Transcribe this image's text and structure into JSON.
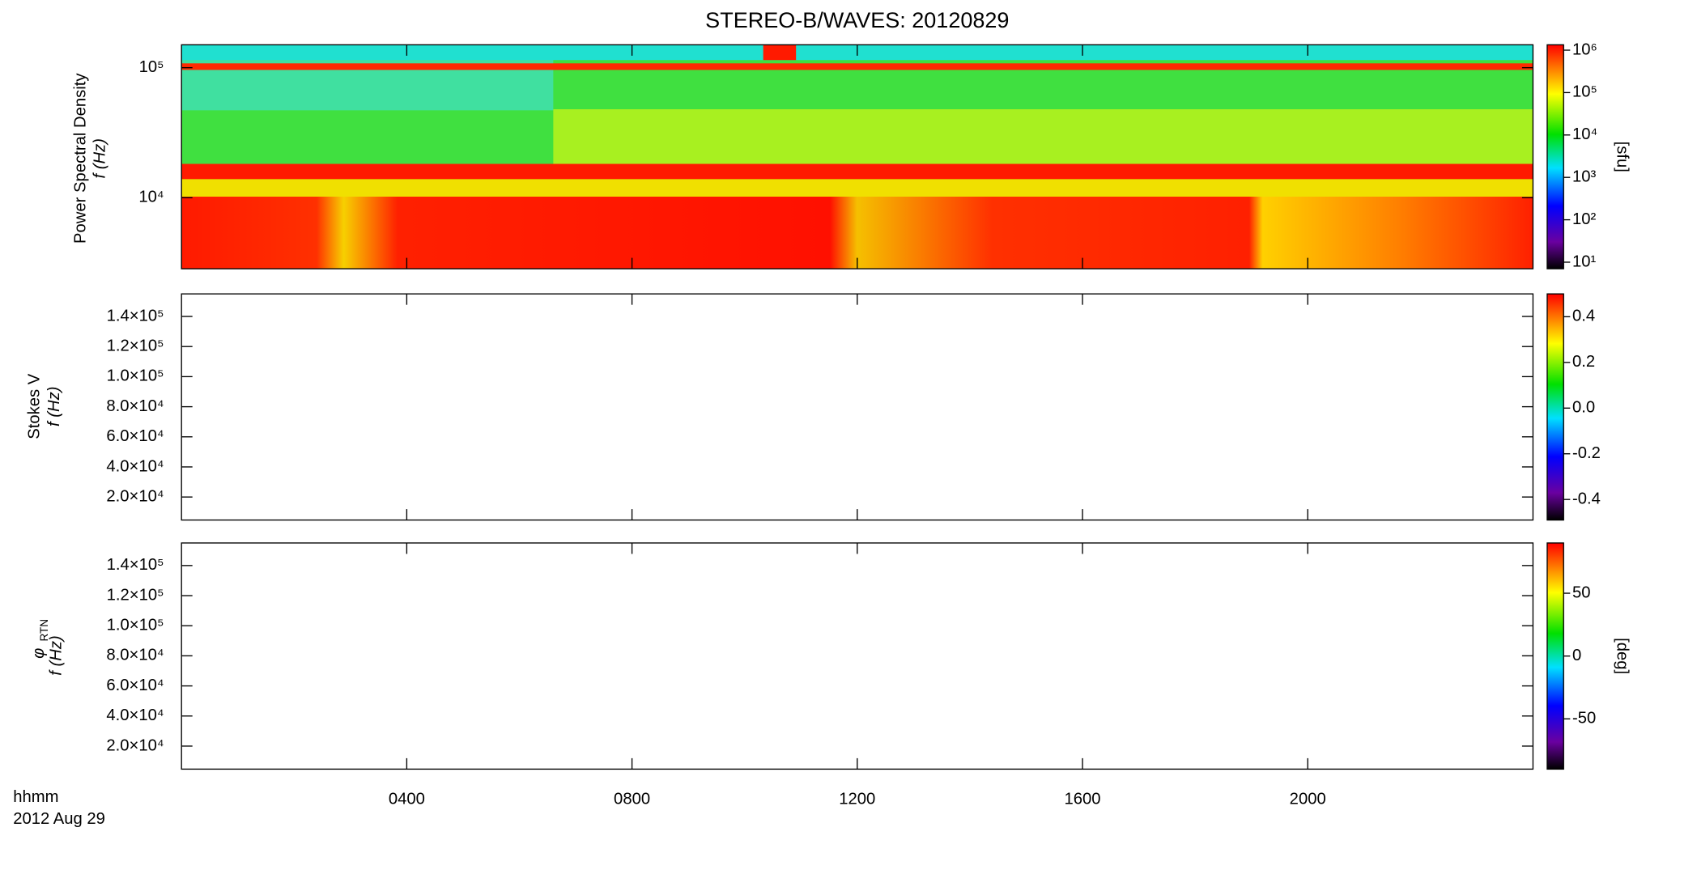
{
  "chart_data": [
    {
      "type": "spectrogram",
      "title": "STEREO-B/WAVES: 20120829",
      "y_label": "Power Spectral Density",
      "y_label2": "f (Hz)",
      "log_y": true,
      "ylim": [
        2840,
        150000
      ],
      "yticks": [
        {
          "value": 10000,
          "label": "10⁴"
        },
        {
          "value": 100000,
          "label": "10⁵"
        }
      ],
      "xlim": [
        0,
        24
      ],
      "xticks": [
        4,
        8,
        12,
        16,
        20
      ],
      "colorbar": {
        "label": "[sfu]",
        "log": true,
        "lim": [
          7,
          1340000
        ],
        "ticks": [
          {
            "value": 10,
            "label": "10¹"
          },
          {
            "value": 100,
            "label": "10²"
          },
          {
            "value": 1000,
            "label": "10³"
          },
          {
            "value": 10000,
            "label": "10⁴"
          },
          {
            "value": 100000,
            "label": "10⁵"
          },
          {
            "value": 1000000,
            "label": "10⁶"
          }
        ]
      }
    },
    {
      "type": "spectrogram",
      "y_label": "Stokes V",
      "y_label2": "f (Hz)",
      "log_y": false,
      "ylim": [
        4700,
        155000
      ],
      "yticks": [
        {
          "value": 20000,
          "label": "2.0×10⁴"
        },
        {
          "value": 40000,
          "label": "4.0×10⁴"
        },
        {
          "value": 60000,
          "label": "6.0×10⁴"
        },
        {
          "value": 80000,
          "label": "8.0×10⁴"
        },
        {
          "value": 100000,
          "label": "1.0×10⁵"
        },
        {
          "value": 120000,
          "label": "1.2×10⁵"
        },
        {
          "value": 140000,
          "label": "1.4×10⁵"
        }
      ],
      "xlim": [
        0,
        24
      ],
      "xticks": [
        4,
        8,
        12,
        16,
        20
      ],
      "colorbar": {
        "log": false,
        "lim": [
          -0.49,
          0.5
        ],
        "ticks": [
          -0.4,
          -0.2,
          {
            "value": 0,
            "label": "0.0"
          },
          0.2,
          0.4
        ]
      }
    },
    {
      "type": "spectrogram",
      "y_label": "φ",
      "y_label_sub": "RTN",
      "y_label2": "f (Hz)",
      "log_y": false,
      "ylim": [
        4700,
        155000
      ],
      "yticks": [
        {
          "value": 20000,
          "label": "2.0×10⁴"
        },
        {
          "value": 40000,
          "label": "4.0×10⁴"
        },
        {
          "value": 60000,
          "label": "6.0×10⁴"
        },
        {
          "value": 80000,
          "label": "8.0×10⁴"
        },
        {
          "value": 100000,
          "label": "1.0×10⁵"
        },
        {
          "value": 120000,
          "label": "1.2×10⁵"
        },
        {
          "value": 140000,
          "label": "1.4×10⁵"
        }
      ],
      "xlim": [
        0,
        24
      ],
      "xticks": [
        {
          "value": 4,
          "label": "0400"
        },
        {
          "value": 8,
          "label": "0800"
        },
        {
          "value": 12,
          "label": "1200"
        },
        {
          "value": 16,
          "label": "1600"
        },
        {
          "value": 20,
          "label": "2000"
        }
      ],
      "xlabel": "hhmm",
      "date": "2012 Aug 29",
      "colorbar": {
        "label": "[deg]",
        "log": false,
        "lim": [
          -90,
          90
        ],
        "ticks": [
          -50,
          0,
          50
        ]
      }
    }
  ]
}
